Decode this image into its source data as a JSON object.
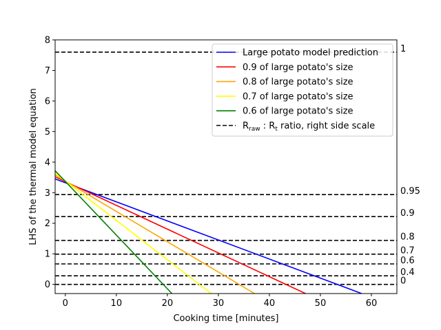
{
  "chart_data": {
    "type": "line",
    "xlabel": "Cooking time [minutes]",
    "ylabel": "LHS of the thermal model equation",
    "xlim": [
      -2,
      65
    ],
    "ylim": [
      -0.3,
      8
    ],
    "xticks": [
      0,
      10,
      20,
      30,
      40,
      50,
      60
    ],
    "yticks": [
      0,
      1,
      2,
      3,
      4,
      5,
      6,
      7,
      8
    ],
    "grid": false,
    "legend_position": "top-right",
    "series": [
      {
        "name": "Large potato model prediction",
        "color": "#0000ff",
        "x": [
          -2,
          58.1
        ],
        "y": [
          3.45,
          -0.3
        ]
      },
      {
        "name": "0.9 of large potato's size",
        "color": "#ff0000",
        "x": [
          -2,
          47.1
        ],
        "y": [
          3.52,
          -0.3
        ]
      },
      {
        "name": "0.8 of large potato's size",
        "color": "#ffa500",
        "x": [
          -2,
          37.1
        ],
        "y": [
          3.58,
          -0.3
        ]
      },
      {
        "name": "0.7 of large potato's size",
        "color": "#ffff00",
        "x": [
          -2,
          28.6
        ],
        "y": [
          3.64,
          -0.3
        ]
      },
      {
        "name": "0.6 of large potato's size",
        "color": "#008000",
        "x": [
          -2,
          20.9
        ],
        "y": [
          3.72,
          -0.3
        ]
      }
    ],
    "ratio_lines": {
      "name_parts": [
        "R",
        "raw",
        " : R",
        "t",
        " ratio, right side scale"
      ],
      "color": "#000000",
      "levels": [
        {
          "label": "1",
          "y": 7.6
        },
        {
          "label": "0.95",
          "y": 2.94
        },
        {
          "label": "0.9",
          "y": 2.22
        },
        {
          "label": "0.8",
          "y": 1.44
        },
        {
          "label": "0.7",
          "y": 0.99
        },
        {
          "label": "0.6",
          "y": 0.67
        },
        {
          "label": "0.4",
          "y": 0.28
        },
        {
          "label": "0",
          "y": 0.0
        }
      ]
    }
  }
}
